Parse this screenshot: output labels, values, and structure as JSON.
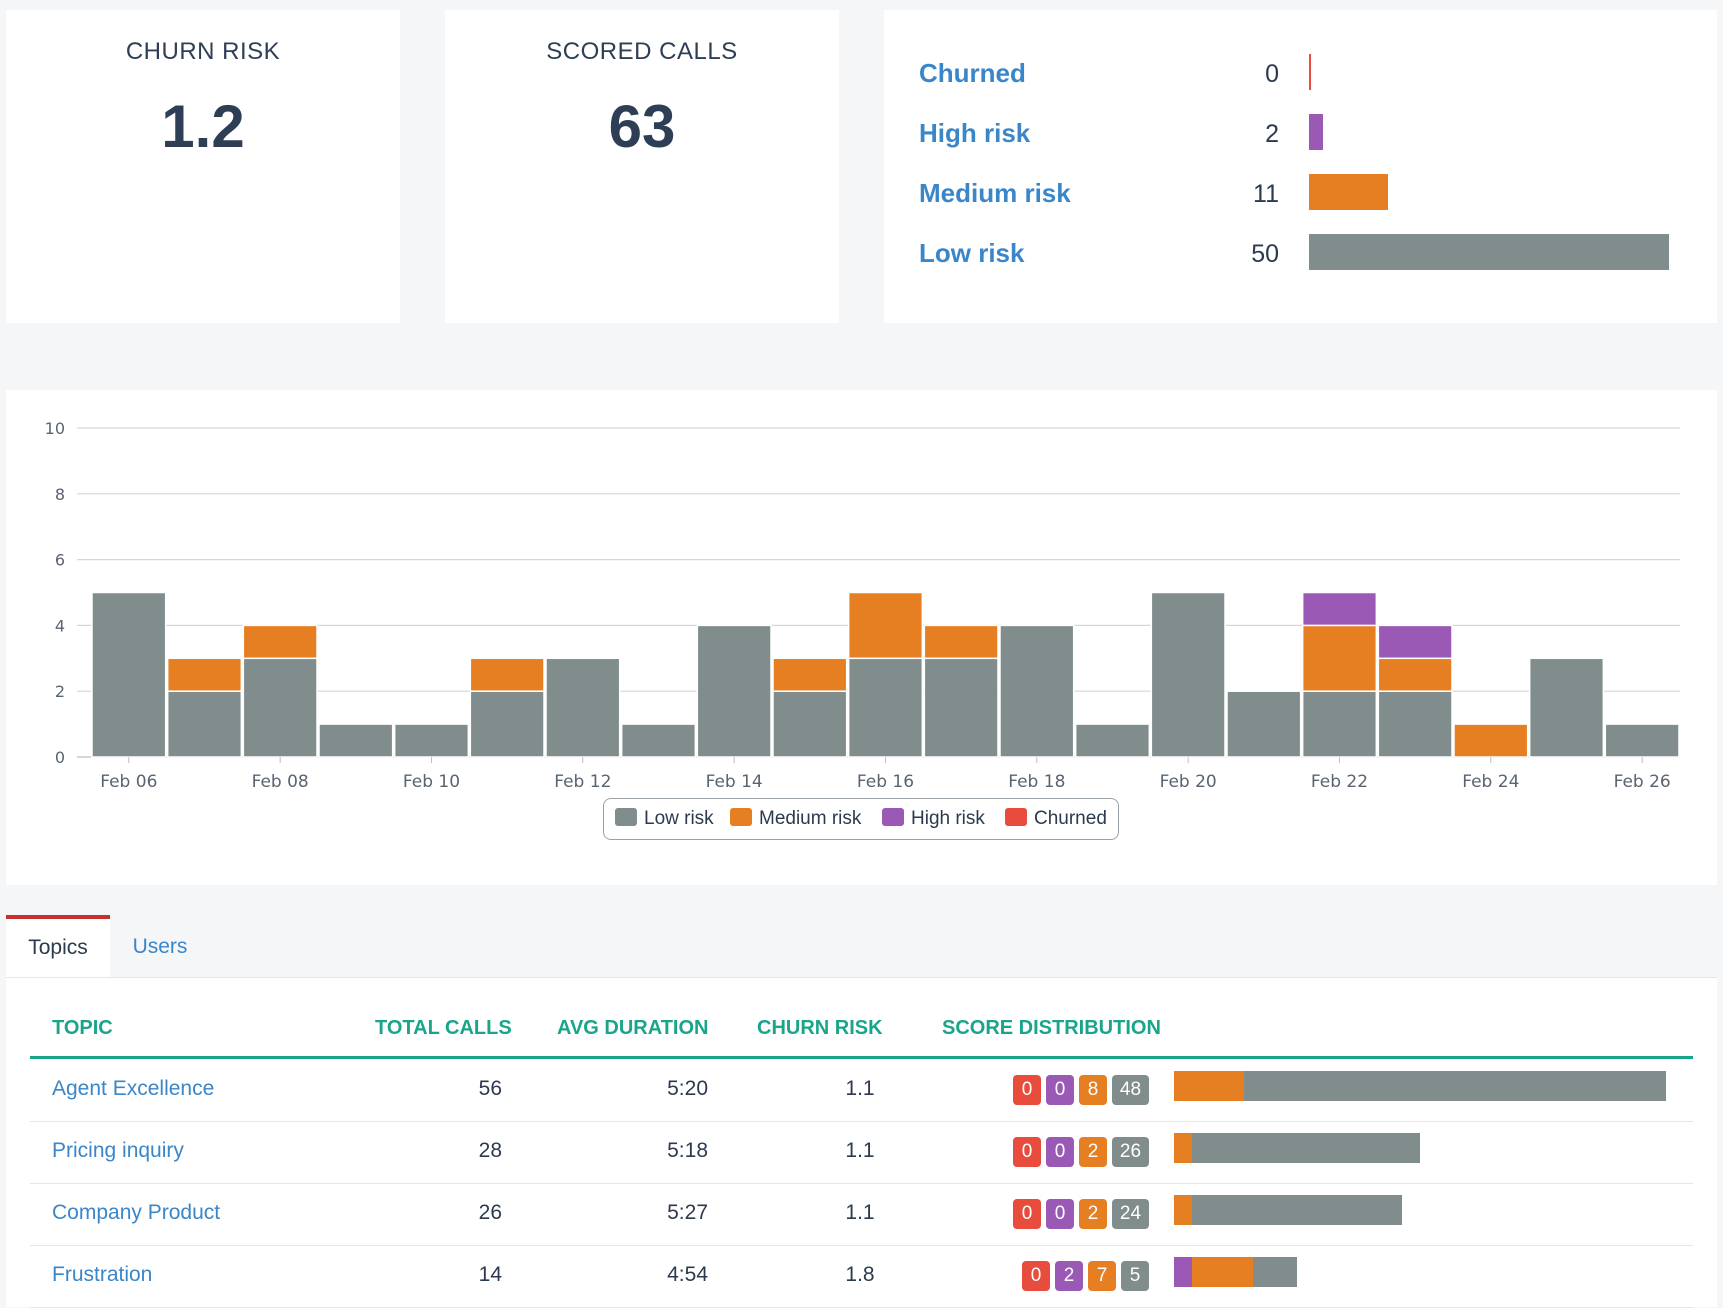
{
  "colors": {
    "low": "#808d8c",
    "medium": "#e67e22",
    "high": "#9b59b6",
    "churned": "#e74c3c",
    "link": "#3a86c8",
    "header": "#1aa58a"
  },
  "kpis": {
    "churn_risk": {
      "label": "CHURN RISK",
      "value": "1.2"
    },
    "scored_calls": {
      "label": "SCORED CALLS",
      "value": "63"
    }
  },
  "distribution": [
    {
      "label": "Churned",
      "count": "0",
      "value": 0,
      "color": "#e74c3c"
    },
    {
      "label": "High risk",
      "count": "2",
      "value": 2,
      "color": "#9b59b6"
    },
    {
      "label": "Medium risk",
      "count": "11",
      "value": 11,
      "color": "#e67e22"
    },
    {
      "label": "Low risk",
      "count": "50",
      "value": 50,
      "color": "#808d8c"
    }
  ],
  "chart_data": {
    "type": "bar",
    "stacked": true,
    "categories": [
      "Feb 06",
      "Feb 07",
      "Feb 08",
      "Feb 09",
      "Feb 10",
      "Feb 11",
      "Feb 12",
      "Feb 13",
      "Feb 14",
      "Feb 15",
      "Feb 16",
      "Feb 17",
      "Feb 18",
      "Feb 19",
      "Feb 20",
      "Feb 21",
      "Feb 22",
      "Feb 23",
      "Feb 24",
      "Feb 25",
      "Feb 26"
    ],
    "tick_labels": [
      "Feb 06",
      "Feb 08",
      "Feb 10",
      "Feb 12",
      "Feb 14",
      "Feb 16",
      "Feb 18",
      "Feb 20",
      "Feb 22",
      "Feb 24",
      "Feb 26"
    ],
    "series": [
      {
        "name": "Low risk",
        "color": "#808d8c",
        "values": [
          5,
          2,
          3,
          1,
          1,
          2,
          3,
          1,
          4,
          2,
          3,
          3,
          4,
          1,
          5,
          2,
          2,
          2,
          0,
          3,
          1
        ]
      },
      {
        "name": "Medium risk",
        "color": "#e67e22",
        "values": [
          0,
          1,
          1,
          0,
          0,
          1,
          0,
          0,
          0,
          1,
          2,
          1,
          0,
          0,
          0,
          0,
          2,
          1,
          1,
          0,
          0
        ]
      },
      {
        "name": "High risk",
        "color": "#9b59b6",
        "values": [
          0,
          0,
          0,
          0,
          0,
          0,
          0,
          0,
          0,
          0,
          0,
          0,
          0,
          0,
          0,
          0,
          1,
          1,
          0,
          0,
          0
        ]
      },
      {
        "name": "Churned",
        "color": "#e74c3c",
        "values": [
          0,
          0,
          0,
          0,
          0,
          0,
          0,
          0,
          0,
          0,
          0,
          0,
          0,
          0,
          0,
          0,
          0,
          0,
          0,
          0,
          0
        ]
      }
    ],
    "ylim": [
      0,
      10
    ],
    "yticks": [
      0,
      2,
      4,
      6,
      8,
      10
    ],
    "grid": true,
    "legend": "bottom"
  },
  "tabs": [
    {
      "label": "Topics",
      "active": true
    },
    {
      "label": "Users",
      "active": false
    }
  ],
  "table": {
    "headers": [
      "TOPIC",
      "TOTAL CALLS",
      "AVG DURATION",
      "CHURN RISK",
      "SCORE DISTRIBUTION"
    ],
    "max_total": 56,
    "rows": [
      {
        "topic": "Agent Excellence",
        "total": "56",
        "duration": "5:20",
        "risk": "1.1",
        "churned": "0",
        "high": "0",
        "medium": "8",
        "low": "48",
        "n": [
          0,
          0,
          8,
          48
        ]
      },
      {
        "topic": "Pricing inquiry",
        "total": "28",
        "duration": "5:18",
        "risk": "1.1",
        "churned": "0",
        "high": "0",
        "medium": "2",
        "low": "26",
        "n": [
          0,
          0,
          2,
          26
        ]
      },
      {
        "topic": "Company Product",
        "total": "26",
        "duration": "5:27",
        "risk": "1.1",
        "churned": "0",
        "high": "0",
        "medium": "2",
        "low": "24",
        "n": [
          0,
          0,
          2,
          24
        ]
      },
      {
        "topic": "Frustration",
        "total": "14",
        "duration": "4:54",
        "risk": "1.8",
        "churned": "0",
        "high": "2",
        "medium": "7",
        "low": "5",
        "n": [
          0,
          2,
          7,
          5
        ]
      }
    ]
  }
}
